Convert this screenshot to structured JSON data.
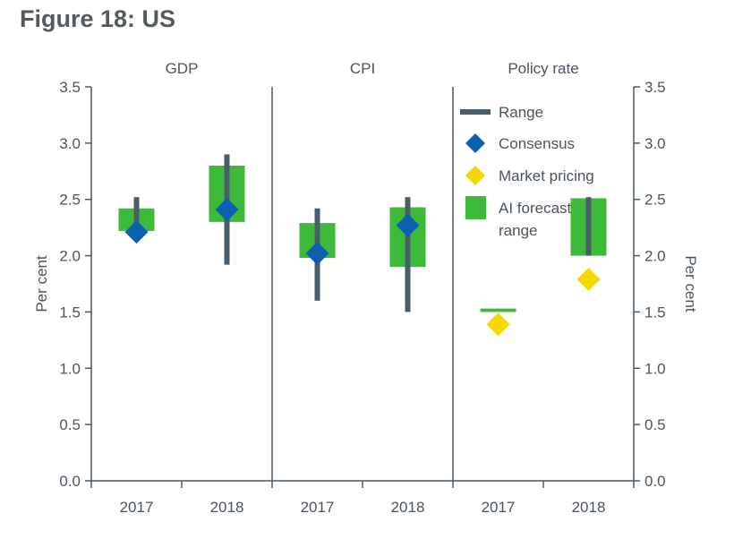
{
  "figure": {
    "title": "Figure 18: US"
  },
  "chart_data": {
    "type": "range-dot",
    "title": "Figure 18: US",
    "panels": [
      {
        "name": "GDP",
        "categories": [
          "2017",
          "2018"
        ]
      },
      {
        "name": "CPI",
        "categories": [
          "2017",
          "2018"
        ]
      },
      {
        "name": "Policy rate",
        "categories": [
          "2017",
          "2018"
        ]
      }
    ],
    "ylabel_left": "Per cent",
    "ylabel_right": "Per cent",
    "ylim": [
      0.0,
      3.5
    ],
    "yticks": [
      "0.0",
      "0.5",
      "1.0",
      "1.5",
      "2.0",
      "2.5",
      "3.0",
      "3.5"
    ],
    "legend": {
      "placement": "top-right",
      "entries": [
        {
          "key": "range",
          "label": "Range"
        },
        {
          "key": "consensus",
          "label": "Consensus"
        },
        {
          "key": "market",
          "label": "Market pricing"
        },
        {
          "key": "ai",
          "label": "AI forecast range"
        }
      ]
    },
    "series": [
      {
        "key": "ai",
        "name": "AI forecast range",
        "color": "#3dba3a",
        "values": [
          [
            2.22,
            2.42
          ],
          [
            2.3,
            2.8
          ],
          [
            1.98,
            2.29
          ],
          [
            1.9,
            2.43
          ],
          [
            1.5,
            1.53
          ],
          [
            2.0,
            2.51
          ]
        ]
      },
      {
        "key": "range",
        "name": "Range",
        "color": "#4a5d6b",
        "values": [
          [
            2.14,
            2.52
          ],
          [
            1.92,
            2.9
          ],
          [
            1.6,
            2.42
          ],
          [
            1.5,
            2.52
          ],
          null,
          [
            2.0,
            2.52
          ]
        ]
      },
      {
        "key": "consensus",
        "name": "Consensus",
        "color": "#0f5fb0",
        "values": [
          2.21,
          2.41,
          2.02,
          2.27,
          null,
          null
        ]
      },
      {
        "key": "market",
        "name": "Market pricing",
        "color": "#f5d800",
        "values": [
          null,
          null,
          null,
          null,
          1.39,
          1.79
        ]
      }
    ]
  }
}
